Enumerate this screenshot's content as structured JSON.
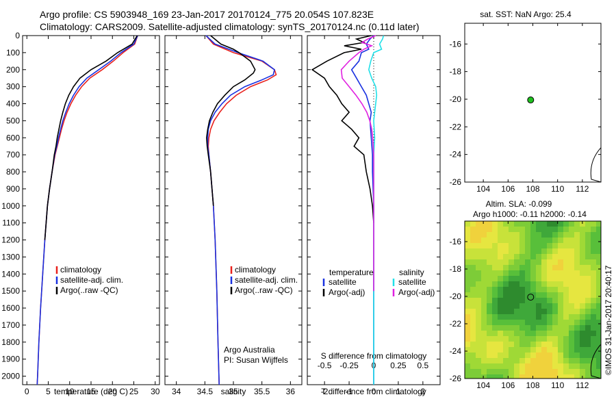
{
  "header": {
    "line1": "Argo profile: CS 5903948_169 23-Jan-2017 20170124_775 20.054S 107.823E",
    "line2": "Climatology: CARS2009. Satellite-adjusted climatology: synTS_20170124.nc (0.11d later)"
  },
  "colors": {
    "climatology": "#e8201c",
    "satellite": "#1830e0",
    "argo": "#000000",
    "satellite_s": "#20e0e8",
    "argo_s": "#e020e0",
    "float_marker": "#20c020"
  },
  "chart_data": [
    {
      "id": "temperature",
      "type": "line",
      "xlabel": "temperature (deg C)",
      "xlim": [
        -1,
        31
      ],
      "xticks": [
        0,
        5,
        10,
        15,
        20,
        25,
        30
      ],
      "ylim": [
        0,
        2050
      ],
      "yticks": [
        0,
        100,
        200,
        300,
        400,
        500,
        600,
        700,
        800,
        900,
        1000,
        1100,
        1200,
        1300,
        1400,
        1500,
        1600,
        1700,
        1800,
        1900,
        2000
      ],
      "legend": [
        "climatology",
        "satellite-adj. clim.",
        "Argo(..raw -QC)"
      ],
      "series": [
        {
          "name": "climatology",
          "color_key": "climatology",
          "depth": [
            0,
            50,
            100,
            150,
            200,
            250,
            300,
            350,
            400,
            450,
            500,
            550,
            600,
            650,
            700,
            800,
            900,
            1000,
            1200,
            1400,
            1600,
            1800,
            2000,
            2050
          ],
          "values": [
            25.9,
            25.2,
            22.5,
            20.2,
            17.6,
            14.7,
            12.8,
            11.4,
            10.3,
            9.4,
            8.7,
            8.1,
            7.6,
            7.1,
            6.6,
            5.9,
            5.3,
            4.8,
            4.2,
            3.7,
            3.2,
            2.8,
            2.5,
            2.4
          ]
        },
        {
          "name": "satellite-adj. clim.",
          "color_key": "satellite",
          "depth": [
            0,
            50,
            100,
            150,
            200,
            250,
            300,
            350,
            400,
            450,
            500,
            550,
            600,
            650,
            700,
            800,
            900,
            1000,
            1200,
            1400,
            1600,
            1800,
            2000,
            2050
          ],
          "values": [
            25.9,
            25.0,
            22.0,
            19.6,
            16.8,
            14.0,
            12.2,
            10.9,
            9.9,
            9.1,
            8.4,
            7.9,
            7.4,
            7.0,
            6.5,
            5.9,
            5.3,
            4.8,
            4.2,
            3.7,
            3.2,
            2.8,
            2.5,
            2.4
          ]
        },
        {
          "name": "Argo(..raw -QC)",
          "color_key": "argo",
          "depth": [
            0,
            50,
            100,
            150,
            200,
            250,
            300,
            350,
            400,
            450,
            500,
            550,
            600,
            650,
            700,
            800,
            900,
            1000,
            1200
          ],
          "values": [
            25.8,
            24.6,
            21.2,
            18.5,
            15.0,
            12.4,
            10.9,
            9.8,
            9.0,
            8.4,
            7.9,
            7.5,
            7.1,
            6.8,
            6.4,
            5.9,
            5.3,
            4.8,
            4.2
          ]
        }
      ]
    },
    {
      "id": "salinity",
      "type": "line",
      "xlabel": "salinity",
      "xlim": [
        33.8,
        36.2
      ],
      "xticks": [
        34,
        34.5,
        35,
        35.5,
        36
      ],
      "ylim": [
        0,
        2050
      ],
      "legend": [
        "climatology",
        "satellite-adj. clim.",
        "Argo(..raw -QC)"
      ],
      "annotation": [
        "Argo Australia",
        "PI: Susan Wijffels"
      ],
      "series": [
        {
          "name": "climatology",
          "color_key": "climatology",
          "depth": [
            0,
            50,
            100,
            150,
            200,
            230,
            260,
            300,
            350,
            400,
            450,
            500,
            550,
            600,
            650,
            700,
            800,
            1000,
            1200,
            1500,
            1800,
            2050
          ],
          "values": [
            34.52,
            34.65,
            35.0,
            35.5,
            35.72,
            35.75,
            35.6,
            35.3,
            35.05,
            34.88,
            34.76,
            34.66,
            34.6,
            34.57,
            34.56,
            34.57,
            34.6,
            34.65,
            34.68,
            34.71,
            34.73,
            34.75
          ]
        },
        {
          "name": "satellite-adj. clim.",
          "color_key": "satellite",
          "depth": [
            0,
            50,
            100,
            150,
            200,
            230,
            260,
            300,
            350,
            400,
            450,
            500,
            550,
            600,
            650,
            700,
            800,
            1000,
            1200,
            1500,
            1800,
            2050
          ],
          "values": [
            34.52,
            34.68,
            35.08,
            35.52,
            35.72,
            35.7,
            35.5,
            35.2,
            34.95,
            34.8,
            34.68,
            34.6,
            34.56,
            34.55,
            34.55,
            34.57,
            34.6,
            34.65,
            34.68,
            34.71,
            34.73,
            34.75
          ]
        },
        {
          "name": "Argo(..raw -QC)",
          "color_key": "argo",
          "depth": [
            0,
            50,
            80,
            100,
            150,
            200,
            220,
            260,
            300,
            350,
            400,
            450,
            500,
            550,
            600,
            650,
            700,
            800,
            1000
          ],
          "values": [
            34.6,
            34.78,
            35.0,
            35.1,
            35.3,
            35.38,
            35.35,
            35.2,
            35.0,
            34.85,
            34.72,
            34.64,
            34.58,
            34.55,
            34.53,
            34.54,
            34.56,
            34.6,
            34.65
          ]
        }
      ]
    },
    {
      "id": "difference",
      "type": "line",
      "xlabel": "T difference from climatology",
      "xlabel_top": "S difference from climatology",
      "xlim": [
        -2.7,
        2.7
      ],
      "xticks": [
        -2,
        -1,
        0,
        1,
        2
      ],
      "xticks_s": [
        -0.5,
        -0.25,
        0,
        0.25,
        0.5
      ],
      "xticks_s_text": [
        "-0.5",
        "-0.25",
        "0",
        "0.25",
        "0.5"
      ],
      "ylim": [
        0,
        2050
      ],
      "legend_left_title": "temperature",
      "legend_right_title": "salinity",
      "legend_left": [
        "satellite",
        "Argo(-adj)"
      ],
      "legend_right": [
        "satellite",
        "Argo(-adj)"
      ],
      "series": [
        {
          "name": "T satellite",
          "color_key": "satellite",
          "depth": [
            0,
            20,
            50,
            80,
            100,
            150,
            200,
            250,
            300,
            350,
            400,
            450,
            500,
            600,
            700,
            800,
            1000,
            1500,
            2050
          ],
          "values": [
            0,
            -0.15,
            -0.3,
            -0.2,
            -0.5,
            -0.6,
            -0.9,
            -0.7,
            -0.5,
            -0.3,
            -0.2,
            -0.1,
            -0.15,
            -0.1,
            -0.05,
            -0.05,
            0,
            0,
            0
          ]
        },
        {
          "name": "T Argo(-adj)",
          "color_key": "argo",
          "depth": [
            0,
            20,
            40,
            60,
            80,
            100,
            150,
            200,
            250,
            300,
            350,
            400,
            450,
            500,
            550,
            600,
            650,
            700,
            800,
            900,
            1000,
            1100
          ],
          "values": [
            -0.1,
            -0.7,
            -0.4,
            -1.2,
            -0.5,
            -1.2,
            -1.9,
            -2.5,
            -2.0,
            -1.8,
            -1.5,
            -1.3,
            -1.0,
            -1.3,
            -0.9,
            -0.6,
            -0.8,
            -0.4,
            -0.3,
            -0.15,
            -0.05,
            0
          ]
        },
        {
          "name": "S satellite",
          "color_key": "satellite_s",
          "depth": [
            0,
            20,
            50,
            80,
            100,
            150,
            200,
            250,
            300,
            350,
            400,
            450,
            500,
            600,
            700,
            800,
            1000,
            1500,
            2050
          ],
          "values": [
            0.1,
            0.09,
            0.06,
            0.08,
            0.0,
            -0.03,
            -0.05,
            -0.02,
            0.02,
            0.03,
            0.02,
            0.01,
            0.0,
            0.01,
            0.0,
            0.0,
            0.0,
            0.0,
            0.0
          ]
        },
        {
          "name": "S Argo(-adj)",
          "color_key": "argo_s",
          "depth": [
            0,
            20,
            40,
            60,
            80,
            100,
            150,
            200,
            250,
            300,
            350,
            400,
            450,
            500,
            550,
            600,
            700,
            800,
            1000,
            1500
          ],
          "values": [
            0.02,
            -0.06,
            -0.12,
            -0.02,
            -0.1,
            -0.15,
            -0.25,
            -0.33,
            -0.32,
            -0.25,
            -0.18,
            -0.12,
            -0.07,
            -0.04,
            -0.02,
            -0.01,
            0.0,
            0.0,
            0.0,
            0.0
          ]
        }
      ]
    },
    {
      "id": "sst-map",
      "type": "scatter",
      "title": "sat. SST: NaN Argo: 25.4",
      "xlim": [
        102.5,
        113.5
      ],
      "xticks": [
        104,
        106,
        108,
        110,
        112
      ],
      "ylim": [
        -26,
        -14.5
      ],
      "yticks": [
        -26,
        -24,
        -22,
        -20,
        -18,
        -16
      ],
      "points": [
        {
          "x": 107.823,
          "y": -20.054
        }
      ]
    },
    {
      "id": "sla-map",
      "type": "heatmap",
      "title": "Altim. SLA: -0.099",
      "subtitle": "Argo h1000: -0.11 h2000: -0.14",
      "xlim": [
        102.5,
        113.5
      ],
      "xticks": [
        104,
        106,
        108,
        110,
        112
      ],
      "ylim": [
        -26,
        -14.5
      ],
      "yticks": [
        -26,
        -24,
        -22,
        -20,
        -18,
        -16
      ],
      "points": [
        {
          "x": 107.823,
          "y": -20.054
        }
      ]
    }
  ],
  "footer": {
    "credit": "©IMOS 31-Jan-2017 20:40:17"
  }
}
